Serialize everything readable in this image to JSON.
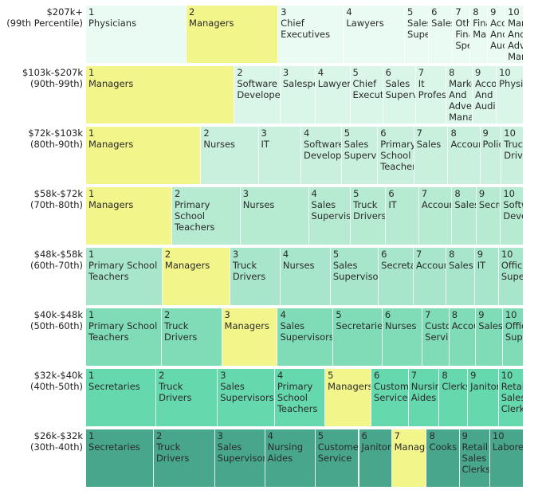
{
  "chart_data": {
    "type": "treemap-rows",
    "title": "",
    "colors": {
      "highlight": "#f2f58a",
      "highlight_occupation": "Managers",
      "band_fills": [
        "#e9fbf2",
        "#d9f6e9",
        "#c9f0dd",
        "#b6ebd2",
        "#a8e6cc",
        "#7fdcb7",
        "#66d8ad",
        "#48a68c"
      ]
    },
    "rows": [
      {
        "income": "$207k+",
        "percentile": "(99th Percentile)",
        "occupations": [
          {
            "rank": 1,
            "name": "Physicians",
            "share": 23
          },
          {
            "rank": 2,
            "name": "Managers",
            "share": 21
          },
          {
            "rank": 3,
            "name": "Chief Executives",
            "share": 15
          },
          {
            "rank": 4,
            "name": "Lawyers",
            "share": 14
          },
          {
            "rank": 5,
            "name": "Sales Supervisors",
            "share": 5.5
          },
          {
            "rank": 6,
            "name": "Sales",
            "share": 5.5
          },
          {
            "rank": 7,
            "name": "Other Financial Specialists",
            "share": 4
          },
          {
            "rank": 8,
            "name": "Financial Managers",
            "share": 4
          },
          {
            "rank": 9,
            "name": "Accountants And Auditors",
            "share": 4
          },
          {
            "rank": 10,
            "name": "Marketing And Advertising Managers",
            "share": 4
          }
        ]
      },
      {
        "income": "$103k-$207k",
        "percentile": "(90th-99th)",
        "occupations": [
          {
            "rank": 1,
            "name": "Managers",
            "share": 34
          },
          {
            "rank": 2,
            "name": "Software Developers",
            "share": 10.5
          },
          {
            "rank": 3,
            "name": "Salespersons",
            "share": 8
          },
          {
            "rank": 4,
            "name": "Lawyers",
            "share": 8
          },
          {
            "rank": 5,
            "name": "Chief Executives",
            "share": 7.5
          },
          {
            "rank": 6,
            "name": "Sales Supervisors",
            "share": 7.5
          },
          {
            "rank": 7,
            "name": "It Professionals",
            "share": 7
          },
          {
            "rank": 8,
            "name": "Marketing And Advertising Managers",
            "share": 6
          },
          {
            "rank": 9,
            "name": "Accountants And Auditors",
            "share": 5.5
          },
          {
            "rank": 10,
            "name": "Physicians",
            "share": 6
          }
        ]
      },
      {
        "income": "$72k-$103k",
        "percentile": "(80th-90th)",
        "occupations": [
          {
            "rank": 1,
            "name": "Managers",
            "share": 27
          },
          {
            "rank": 2,
            "name": "Nurses",
            "share": 13.5
          },
          {
            "rank": 3,
            "name": "IT",
            "share": 10
          },
          {
            "rank": 4,
            "name": "Software Developers",
            "share": 9.5
          },
          {
            "rank": 5,
            "name": "Sales Supervisors",
            "share": 8.5
          },
          {
            "rank": 6,
            "name": "Primary School Teachers",
            "share": 8.5
          },
          {
            "rank": 7,
            "name": "Sales",
            "share": 8
          },
          {
            "rank": 8,
            "name": "Accountants",
            "share": 7.5
          },
          {
            "rank": 9,
            "name": "Police",
            "share": 5
          },
          {
            "rank": 10,
            "name": "Truck Drivers",
            "share": 5
          }
        ]
      },
      {
        "income": "$58k-$72k",
        "percentile": "(70th-80th)",
        "occupations": [
          {
            "rank": 1,
            "name": "Managers",
            "share": 19.5
          },
          {
            "rank": 2,
            "name": "Primary School Teachers",
            "share": 15.5
          },
          {
            "rank": 3,
            "name": "Nurses",
            "share": 15.5
          },
          {
            "rank": 4,
            "name": "Sales Supervisors",
            "share": 9.5
          },
          {
            "rank": 5,
            "name": "Truck Drivers",
            "share": 8
          },
          {
            "rank": 6,
            "name": "IT",
            "share": 7.5
          },
          {
            "rank": 7,
            "name": "Accountants",
            "share": 7.5
          },
          {
            "rank": 8,
            "name": "Sales",
            "share": 5.5
          },
          {
            "rank": 9,
            "name": "Secretaries",
            "share": 5.5
          },
          {
            "rank": 10,
            "name": "Software Developers",
            "share": 5
          }
        ]
      },
      {
        "income": "$48k-$58k",
        "percentile": "(60th-70th)",
        "occupations": [
          {
            "rank": 1,
            "name": "Primary School Teachers",
            "share": 17.5
          },
          {
            "rank": 2,
            "name": "Managers",
            "share": 15.5
          },
          {
            "rank": 3,
            "name": "Truck Drivers",
            "share": 11.5
          },
          {
            "rank": 4,
            "name": "Nurses",
            "share": 11.5
          },
          {
            "rank": 5,
            "name": "Sales Supervisors",
            "share": 11
          },
          {
            "rank": 6,
            "name": "Secretaries",
            "share": 8
          },
          {
            "rank": 7,
            "name": "Accountants",
            "share": 7.5
          },
          {
            "rank": 8,
            "name": "Sales",
            "share": 6.5
          },
          {
            "rank": 9,
            "name": "IT",
            "share": 5.5
          },
          {
            "rank": 10,
            "name": "Office Supervisors",
            "share": 5.5
          }
        ]
      },
      {
        "income": "$40k-$48k",
        "percentile": "(50th-60th)",
        "occupations": [
          {
            "rank": 1,
            "name": "Primary School Teachers",
            "share": 17
          },
          {
            "rank": 2,
            "name": "Truck Drivers",
            "share": 13.5
          },
          {
            "rank": 3,
            "name": "Managers",
            "share": 12.5
          },
          {
            "rank": 4,
            "name": "Sales Supervisors",
            "share": 12.5
          },
          {
            "rank": 5,
            "name": "Secretaries",
            "share": 11
          },
          {
            "rank": 6,
            "name": "Nurses",
            "share": 9
          },
          {
            "rank": 7,
            "name": "Customer Service",
            "share": 6
          },
          {
            "rank": 8,
            "name": "Accountants",
            "share": 6
          },
          {
            "rank": 9,
            "name": "Sales",
            "share": 6
          },
          {
            "rank": 10,
            "name": "Office Supervisors",
            "share": 4.5
          }
        ]
      },
      {
        "income": "$32k-$40k",
        "percentile": "(40th-50th)",
        "occupations": [
          {
            "rank": 1,
            "name": "Secretaries",
            "share": 16
          },
          {
            "rank": 2,
            "name": "Truck Drivers",
            "share": 14
          },
          {
            "rank": 3,
            "name": "Sales Supervisors",
            "share": 13
          },
          {
            "rank": 4,
            "name": "Primary School Teachers",
            "share": 11.5
          },
          {
            "rank": 5,
            "name": "Managers",
            "share": 10.5
          },
          {
            "rank": 6,
            "name": "Customer Service",
            "share": 8.5
          },
          {
            "rank": 7,
            "name": "Nursing Aides",
            "share": 7
          },
          {
            "rank": 8,
            "name": "Clerks",
            "share": 6.5
          },
          {
            "rank": 9,
            "name": "Janitors",
            "share": 7
          },
          {
            "rank": 10,
            "name": "Retail Sales Clerks",
            "share": 5.5
          }
        ]
      },
      {
        "income": "$26k-$32k",
        "percentile": "(30th-40th)",
        "occupations": [
          {
            "rank": 1,
            "name": "Secretaries",
            "share": 15.5
          },
          {
            "rank": 2,
            "name": "Truck Drivers",
            "share": 14
          },
          {
            "rank": 3,
            "name": "Sales Supervisors",
            "share": 11.5
          },
          {
            "rank": 4,
            "name": "Nursing Aides",
            "share": 11.5
          },
          {
            "rank": 5,
            "name": "Customer Service",
            "share": 10
          },
          {
            "rank": 6,
            "name": "Janitors",
            "share": 7.5
          },
          {
            "rank": 7,
            "name": "Managers",
            "share": 8
          },
          {
            "rank": 8,
            "name": "Cooks",
            "share": 7.5
          },
          {
            "rank": 9,
            "name": "Retail Sales Clerks",
            "share": 7
          },
          {
            "rank": 10,
            "name": "Laborers",
            "share": 7.5
          }
        ]
      }
    ]
  }
}
